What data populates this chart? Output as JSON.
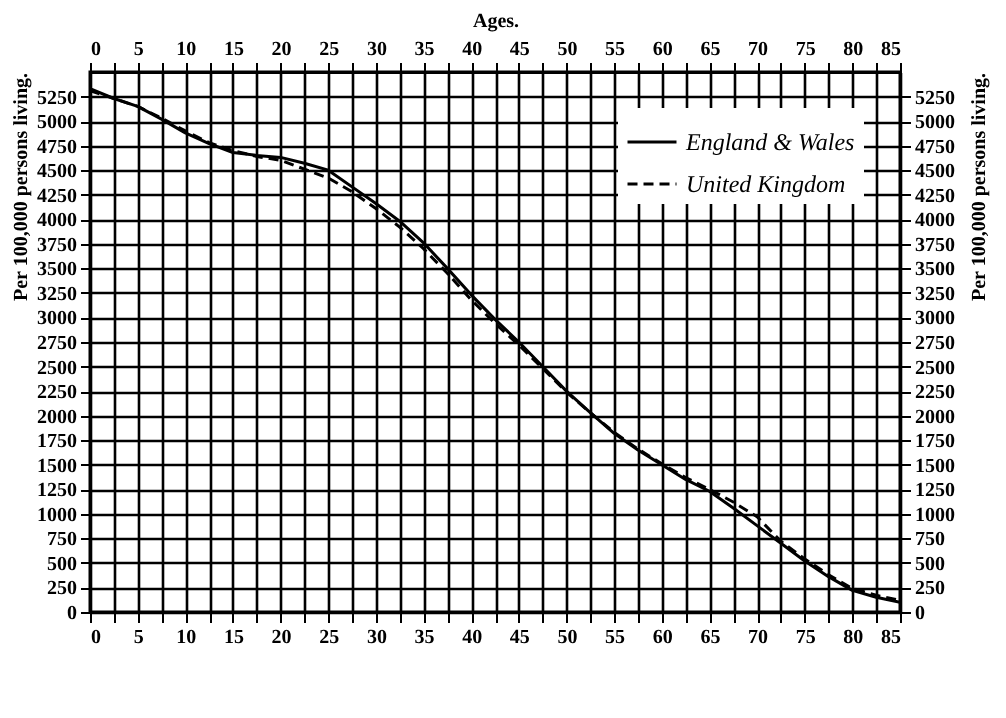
{
  "chart_data": {
    "type": "line",
    "x2label": "Ages.",
    "ylabel": "Per 100,000 persons living.",
    "y2label": "Per 100,000 persons living.",
    "x": [
      0,
      2.5,
      5,
      7.5,
      10,
      12.5,
      15,
      17.5,
      20,
      22.5,
      25,
      27.5,
      30,
      32.5,
      35,
      37.5,
      40,
      42.5,
      45,
      47.5,
      50,
      52.5,
      55,
      57.5,
      60,
      62.5,
      65,
      67.5,
      70,
      72.5,
      75,
      77.5,
      80,
      82.5,
      85
    ],
    "series": [
      {
        "name": "England & Wales",
        "color": "#000000",
        "line_style": "solid",
        "values": [
          5330,
          5230,
          5150,
          5020,
          4880,
          4770,
          4680,
          4650,
          4630,
          4570,
          4500,
          4330,
          4160,
          3980,
          3760,
          3500,
          3230,
          2980,
          2750,
          2500,
          2250,
          2030,
          1820,
          1650,
          1500,
          1350,
          1230,
          1060,
          880,
          700,
          520,
          360,
          220,
          150,
          100
        ]
      },
      {
        "name": "United Kingdom",
        "color": "#000000",
        "line_style": "dashed",
        "values": [
          5310,
          5230,
          5150,
          5030,
          4900,
          4780,
          4700,
          4640,
          4600,
          4510,
          4420,
          4280,
          4110,
          3920,
          3700,
          3450,
          3180,
          2940,
          2720,
          2480,
          2240,
          2030,
          1830,
          1660,
          1510,
          1370,
          1250,
          1120,
          970,
          720,
          540,
          380,
          240,
          170,
          120
        ]
      }
    ],
    "xlim": [
      0,
      85
    ],
    "xticks": [
      0,
      {
        "value": 2.5,
        "label": null
      },
      5,
      {
        "value": 7.5,
        "label": null
      },
      10,
      {
        "value": 12.5,
        "label": null
      },
      15,
      {
        "value": 17.5,
        "label": null
      },
      20,
      {
        "value": 22.5,
        "label": null
      },
      25,
      {
        "value": 27.5,
        "label": null
      },
      30,
      {
        "value": 32.5,
        "label": null
      },
      35,
      {
        "value": 37.5,
        "label": null
      },
      40,
      {
        "value": 42.5,
        "label": null
      },
      45,
      {
        "value": 47.5,
        "label": null
      },
      50,
      {
        "value": 52.5,
        "label": null
      },
      55,
      {
        "value": 57.5,
        "label": null
      },
      60,
      {
        "value": 62.5,
        "label": null
      },
      65,
      {
        "value": 67.5,
        "label": null
      },
      70,
      {
        "value": 72.5,
        "label": null
      },
      75,
      {
        "value": 77.5,
        "label": null
      },
      80,
      {
        "value": 82.5,
        "label": null
      },
      85
    ],
    "x2lim": [
      0,
      85
    ],
    "x2ticks": [
      0,
      {
        "value": 2.5,
        "label": null
      },
      5,
      {
        "value": 7.5,
        "label": null
      },
      10,
      {
        "value": 12.5,
        "label": null
      },
      15,
      {
        "value": 17.5,
        "label": null
      },
      20,
      {
        "value": 22.5,
        "label": null
      },
      25,
      {
        "value": 27.5,
        "label": null
      },
      30,
      {
        "value": 32.5,
        "label": null
      },
      35,
      {
        "value": 37.5,
        "label": null
      },
      40,
      {
        "value": 42.5,
        "label": null
      },
      45,
      {
        "value": 47.5,
        "label": null
      },
      50,
      {
        "value": 52.5,
        "label": null
      },
      55,
      {
        "value": 57.5,
        "label": null
      },
      60,
      {
        "value": 62.5,
        "label": null
      },
      65,
      {
        "value": 67.5,
        "label": null
      },
      70,
      {
        "value": 72.5,
        "label": null
      },
      75,
      {
        "value": 77.5,
        "label": null
      },
      80,
      {
        "value": 82.5,
        "label": null
      },
      85
    ],
    "ylim": [
      0,
      5500
    ],
    "yticks": [
      0,
      250,
      500,
      750,
      1000,
      1250,
      1500,
      1750,
      2000,
      2250,
      2500,
      2750,
      3000,
      3250,
      3500,
      3750,
      4000,
      4250,
      4500,
      4750,
      5000,
      5250
    ],
    "y2lim": [
      0,
      5500
    ],
    "y2ticks": [
      0,
      250,
      500,
      750,
      1000,
      1250,
      1500,
      1750,
      2000,
      2250,
      2500,
      2750,
      3000,
      3250,
      3500,
      3750,
      4000,
      4250,
      4500,
      4750,
      5000,
      5250
    ],
    "grid": true,
    "legend": "top right"
  }
}
